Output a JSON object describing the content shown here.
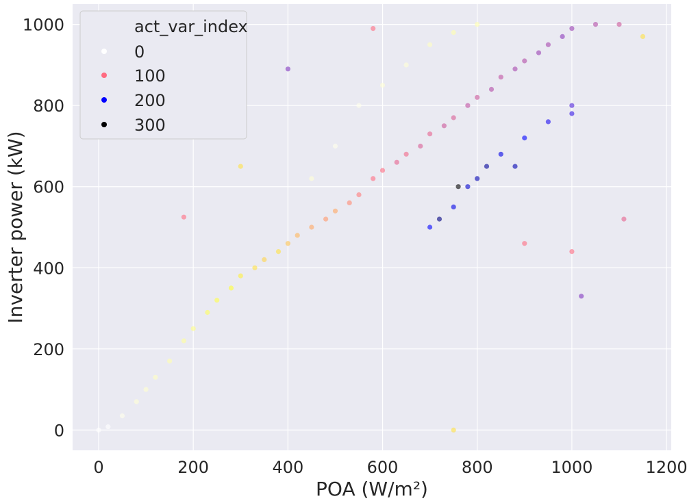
{
  "chart_data": {
    "type": "scatter",
    "xlabel": "POA (W/m²)",
    "ylabel": "Inverter power (kW)",
    "xlim": [
      -55,
      1210
    ],
    "ylim": [
      -50,
      1050
    ],
    "xticks": [
      0,
      200,
      400,
      600,
      800,
      1000,
      1200
    ],
    "yticks": [
      0,
      200,
      400,
      600,
      800,
      1000
    ],
    "grid": true,
    "legend": {
      "title": "act_var_index",
      "placement": "top-left",
      "entries": [
        {
          "label": "0",
          "color": "#ffffff"
        },
        {
          "label": "100",
          "color": "#ff6b81"
        },
        {
          "label": "200",
          "color": "#0000ff"
        },
        {
          "label": "300",
          "color": "#000000"
        }
      ]
    },
    "colormap": [
      "#ffffff",
      "#ffff33",
      "#ff6b81",
      "#0000ff",
      "#000000"
    ],
    "series": [
      {
        "points": [
          [
            0,
            0,
            0
          ],
          [
            20,
            8,
            0
          ],
          [
            50,
            35,
            5
          ],
          [
            80,
            70,
            10
          ],
          [
            100,
            100,
            12
          ],
          [
            120,
            130,
            15
          ],
          [
            150,
            170,
            20
          ],
          [
            180,
            220,
            25
          ],
          [
            200,
            250,
            30
          ],
          [
            230,
            290,
            40
          ],
          [
            250,
            320,
            45
          ],
          [
            280,
            350,
            50
          ],
          [
            300,
            380,
            55
          ],
          [
            330,
            400,
            60
          ],
          [
            350,
            420,
            65
          ],
          [
            380,
            440,
            60
          ],
          [
            400,
            460,
            70
          ],
          [
            420,
            480,
            75
          ],
          [
            450,
            500,
            80
          ],
          [
            480,
            520,
            85
          ],
          [
            500,
            540,
            80
          ],
          [
            530,
            560,
            90
          ],
          [
            550,
            580,
            95
          ],
          [
            580,
            620,
            100
          ],
          [
            600,
            640,
            100
          ],
          [
            630,
            660,
            110
          ],
          [
            650,
            680,
            105
          ],
          [
            680,
            700,
            115
          ],
          [
            700,
            730,
            110
          ],
          [
            730,
            750,
            120
          ],
          [
            750,
            770,
            115
          ],
          [
            780,
            800,
            125
          ],
          [
            800,
            820,
            120
          ],
          [
            830,
            840,
            130
          ],
          [
            850,
            870,
            125
          ],
          [
            880,
            890,
            135
          ],
          [
            900,
            910,
            130
          ],
          [
            930,
            930,
            140
          ],
          [
            950,
            950,
            135
          ],
          [
            980,
            970,
            145
          ],
          [
            1000,
            990,
            140
          ],
          [
            1050,
            1000,
            130
          ],
          [
            1100,
            1000,
            120
          ],
          [
            1150,
            970,
            60
          ],
          [
            500,
            700,
            5
          ],
          [
            550,
            800,
            5
          ],
          [
            450,
            620,
            10
          ],
          [
            600,
            850,
            10
          ],
          [
            650,
            900,
            10
          ],
          [
            700,
            950,
            15
          ],
          [
            750,
            980,
            20
          ],
          [
            800,
            1000,
            20
          ],
          [
            700,
            500,
            200
          ],
          [
            750,
            550,
            210
          ],
          [
            780,
            600,
            220
          ],
          [
            800,
            620,
            230
          ],
          [
            820,
            650,
            240
          ],
          [
            850,
            680,
            210
          ],
          [
            900,
            720,
            200
          ],
          [
            950,
            760,
            190
          ],
          [
            1000,
            780,
            180
          ],
          [
            760,
            600,
            300
          ],
          [
            720,
            520,
            250
          ],
          [
            880,
            650,
            230
          ],
          [
            900,
            460,
            100
          ],
          [
            1000,
            440,
            100
          ],
          [
            1020,
            330,
            150
          ],
          [
            1110,
            520,
            110
          ],
          [
            750,
            0,
            60
          ],
          [
            400,
            890,
            150
          ],
          [
            580,
            990,
            100
          ],
          [
            300,
            650,
            60
          ],
          [
            180,
            525,
            100
          ],
          [
            1000,
            800,
            170
          ]
        ]
      }
    ]
  }
}
